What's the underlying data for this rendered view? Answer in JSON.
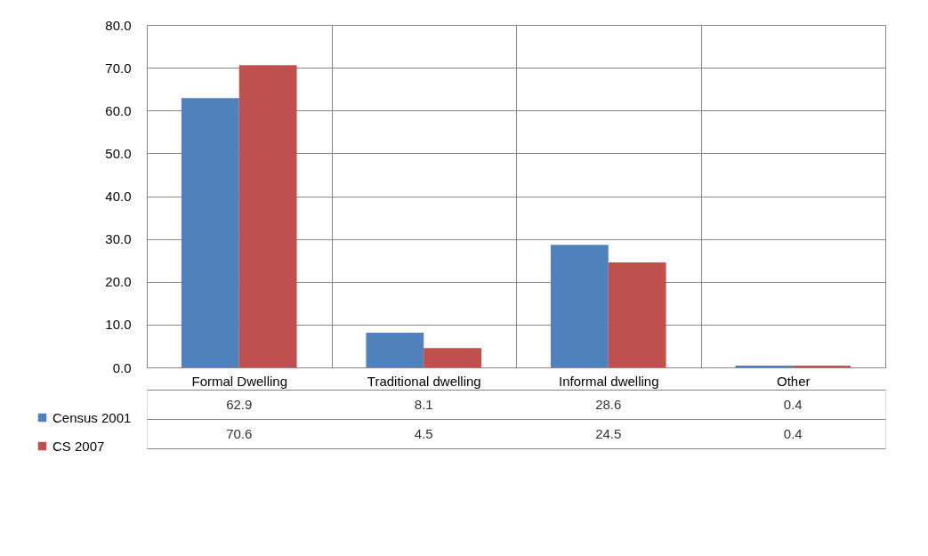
{
  "chart_data": {
    "type": "bar",
    "categories": [
      "Formal Dwelling",
      "Traditional dwelling",
      "Informal dwelling",
      "Other"
    ],
    "series": [
      {
        "name": "Census 2001",
        "color": "#4f81bd",
        "values": [
          62.9,
          8.1,
          28.6,
          0.4
        ]
      },
      {
        "name": "CS 2007",
        "color": "#c0504d",
        "values": [
          70.6,
          4.5,
          24.5,
          0.4
        ]
      }
    ],
    "ylim": [
      0,
      80
    ],
    "yticks": [
      {
        "value": 0,
        "label": "0.0"
      },
      {
        "value": 10,
        "label": "10.0"
      },
      {
        "value": 20,
        "label": "20.0"
      },
      {
        "value": 30,
        "label": "30.0"
      },
      {
        "value": 40,
        "label": "40.0"
      },
      {
        "value": 50,
        "label": "50.0"
      },
      {
        "value": 60,
        "label": "60.0"
      },
      {
        "value": 70,
        "label": "70.0"
      },
      {
        "value": 80,
        "label": "80.0"
      }
    ],
    "grid": "y",
    "data_labels": true,
    "legend": "bottom"
  }
}
